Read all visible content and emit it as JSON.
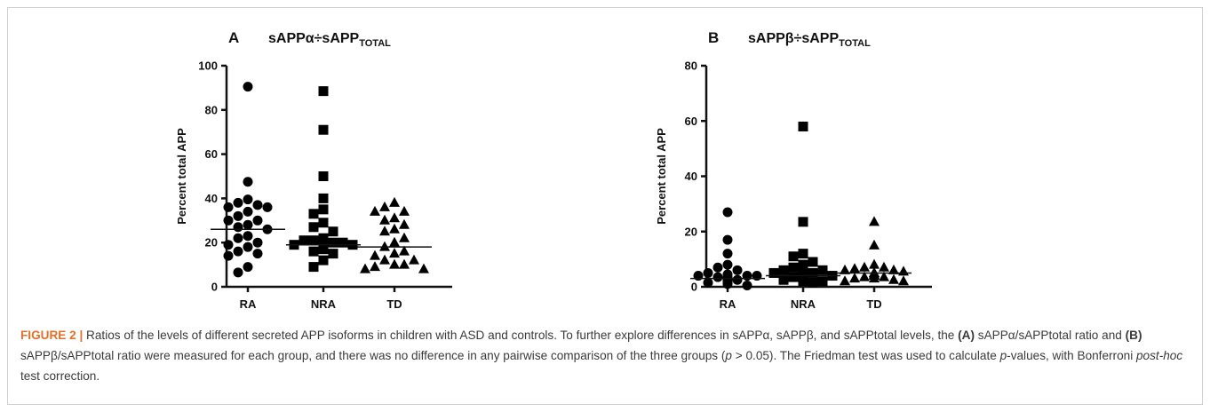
{
  "chart_data": [
    {
      "type": "scatter",
      "panel_label": "A",
      "title": "sAPPα÷sAPP",
      "title_sub": "TOTAL",
      "ylabel": "Percent total APP",
      "xlabel": "",
      "categories": [
        "RA",
        "NRA",
        "TD"
      ],
      "ylim": [
        0,
        100
      ],
      "yticks": [
        0,
        20,
        40,
        60,
        80,
        100
      ],
      "grid": false,
      "markers": [
        "circle",
        "square",
        "triangle"
      ],
      "series": [
        {
          "category": "RA",
          "medianline": 26,
          "values": [
            90.5,
            47.5,
            39.5,
            38,
            37,
            36,
            36,
            34,
            32,
            30,
            30,
            28,
            27,
            26,
            23,
            22,
            20,
            19,
            18,
            16,
            15,
            14,
            9,
            6.5
          ]
        },
        {
          "category": "NRA",
          "medianline": 19,
          "values": [
            88.5,
            71,
            50,
            40,
            35,
            33,
            29,
            27,
            25,
            22,
            21,
            21,
            20,
            20,
            19,
            19,
            19,
            18,
            18,
            17,
            16,
            15,
            12,
            9
          ]
        },
        {
          "category": "TD",
          "medianline": 18,
          "values": [
            38,
            36,
            34,
            34,
            31,
            30,
            28,
            26,
            25,
            22,
            20,
            18,
            16,
            15,
            14,
            12,
            12,
            10,
            10,
            9,
            8,
            8
          ]
        }
      ]
    },
    {
      "type": "scatter",
      "panel_label": "B",
      "title": "sAPPβ÷sAPP",
      "title_sub": "TOTAL",
      "ylabel": "Percent total APP",
      "xlabel": "",
      "categories": [
        "RA",
        "NRA",
        "TD"
      ],
      "ylim": [
        0,
        80
      ],
      "yticks": [
        0,
        20,
        40,
        60,
        80
      ],
      "grid": false,
      "markers": [
        "circle",
        "square",
        "triangle"
      ],
      "series": [
        {
          "category": "RA",
          "medianline": 3,
          "values": [
            27,
            17,
            12,
            8,
            7,
            6,
            5,
            4.5,
            4,
            4,
            4,
            3.5,
            3.5,
            3,
            3,
            3,
            2.5,
            2.5,
            2,
            2,
            2,
            1.5,
            1.5,
            1,
            0.5
          ]
        },
        {
          "category": "NRA",
          "medianline": 4,
          "values": [
            58,
            23.5,
            12,
            11,
            9,
            8,
            7,
            6,
            6,
            5,
            5,
            4.5,
            4,
            4,
            4,
            3.5,
            3.5,
            3,
            3,
            3,
            2.5,
            2,
            2,
            1.5
          ]
        },
        {
          "category": "TD",
          "medianline": 5,
          "values": [
            23.5,
            15,
            8,
            7,
            7,
            6.5,
            6,
            6,
            5.5,
            5,
            5,
            5,
            4.5,
            4.5,
            4,
            4,
            3.5,
            3.5,
            3,
            3,
            2.5,
            2,
            2
          ]
        }
      ]
    }
  ],
  "caption": {
    "label": "FIGURE 2 |",
    "part1": " Ratios of the levels of different secreted APP isoforms in children with ASD and controls. To further explore differences in sAPPα, sAPPβ, and sAPPtotal levels, the ",
    "ref_a": "(A)",
    "part2": " sAPPα/sAPPtotal ratio and ",
    "ref_b": "(B)",
    "part3": " sAPPβ/sAPPtotal ratio were measured for each group, and there was no difference in any pairwise comparison of the three groups (",
    "p_symbol": "p",
    "part4": " > 0.05). The Friedman test was used to calculate ",
    "p_values_symbol": "p",
    "part5": "-values, with Bonferroni ",
    "posthoc": "post-hoc",
    "part6": " test correction."
  }
}
